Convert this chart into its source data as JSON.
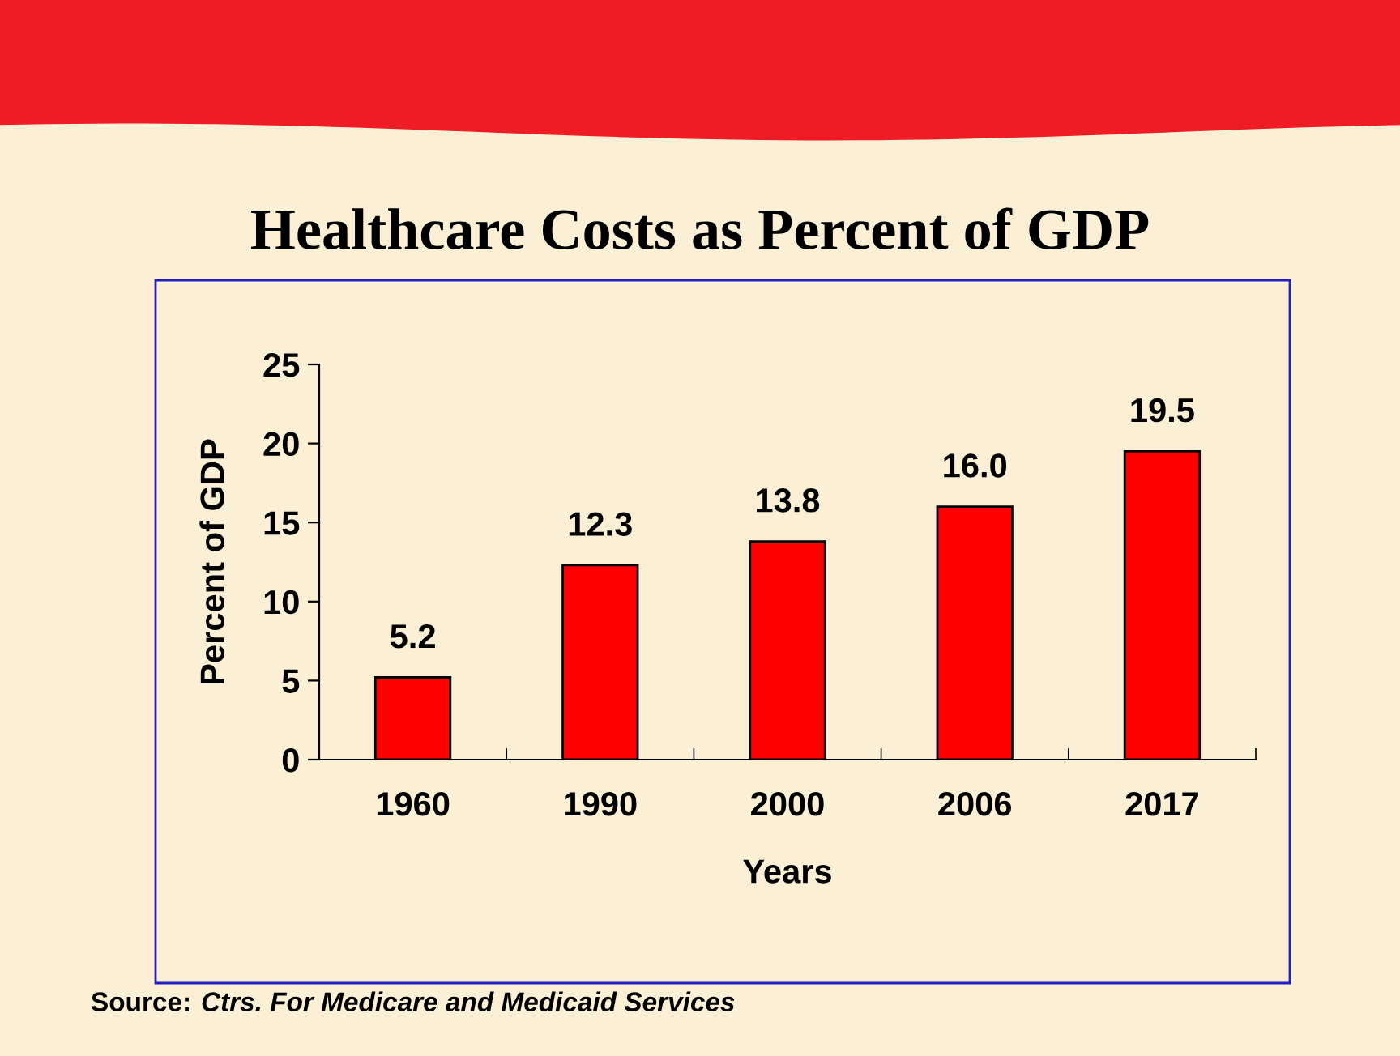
{
  "chart_data": {
    "type": "bar",
    "title": "Healthcare Costs as Percent of GDP",
    "xlabel": "Years",
    "ylabel": "Percent of GDP",
    "categories": [
      "1960",
      "1990",
      "2000",
      "2006",
      "2017"
    ],
    "values": [
      5.2,
      12.3,
      13.8,
      16.0,
      19.5
    ],
    "value_labels": [
      "5.2",
      "12.3",
      "13.8",
      "16.0",
      "19.5"
    ],
    "color": "#ff0000",
    "ylim": [
      0,
      25
    ],
    "yticks": [
      0,
      5,
      10,
      15,
      20,
      25
    ],
    "grid": false,
    "annotations": [
      "Source:",
      "Ctrs. For Medicare and Medicaid Services"
    ]
  }
}
